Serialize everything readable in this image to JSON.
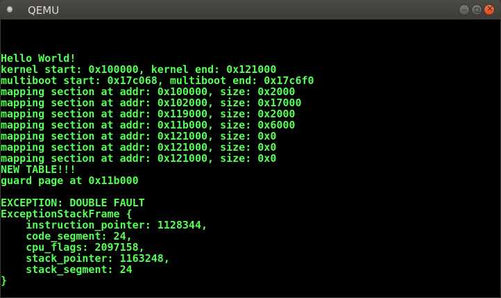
{
  "window": {
    "title": "QEMU",
    "buttons": [
      "minimize",
      "maximize",
      "close"
    ]
  },
  "colors": {
    "text": "#55ff55",
    "background": "#000000",
    "close_button": "#e8612c"
  },
  "screen": {
    "lines": [
      "",
      "",
      "",
      "Hello World!",
      "kernel start: 0x100000, kernel end: 0x121000",
      "multiboot start: 0x17c068, multiboot end: 0x17c6f0",
      "mapping section at addr: 0x100000, size: 0x2000",
      "mapping section at addr: 0x102000, size: 0x17000",
      "mapping section at addr: 0x119000, size: 0x2000",
      "mapping section at addr: 0x11b000, size: 0x6000",
      "mapping section at addr: 0x121000, size: 0x0",
      "mapping section at addr: 0x121000, size: 0x0",
      "mapping section at addr: 0x121000, size: 0x0",
      "NEW TABLE!!!",
      "guard page at 0x11b000",
      "",
      "EXCEPTION: DOUBLE FAULT",
      "ExceptionStackFrame {",
      "    instruction_pointer: 1128344,",
      "    code_segment: 24,",
      "    cpu_flags: 2097158,",
      "    stack_pointer: 1163248,",
      "    stack_segment: 24",
      "}",
      ""
    ]
  }
}
